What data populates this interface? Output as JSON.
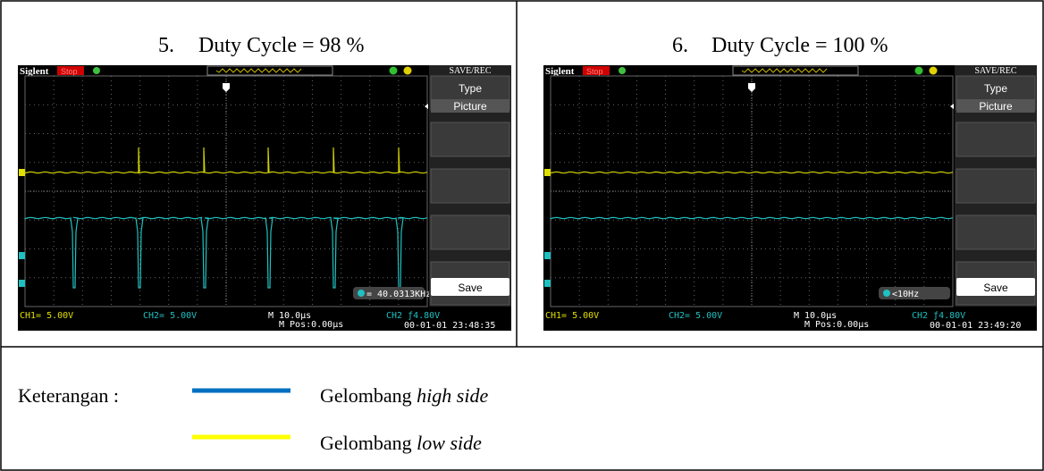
{
  "panels": [
    {
      "number": "5.",
      "caption": "Duty Cycle = 98 %",
      "scope": {
        "brand": "Siglent",
        "status": "Stop",
        "menu_title": "SAVE/REC",
        "menu_items": [
          "Type",
          "Picture",
          "Save"
        ],
        "ch1": "CH1= 5.00V",
        "ch2": "CH2= 5.00V",
        "timebase": "M 10.0µs",
        "position": "M Pos:0.00µs",
        "trigger": "CH2 ƒ4.80V",
        "frequency": "= 40.0313KHz",
        "timestamp": "00-01-01 23:48:35"
      }
    },
    {
      "number": "6.",
      "caption": "Duty Cycle = 100 %",
      "scope": {
        "brand": "Siglent",
        "status": "Stop",
        "menu_title": "SAVE/REC",
        "menu_items": [
          "Type",
          "Picture",
          "Save"
        ],
        "ch1": "CH1= 5.00V",
        "ch2": "CH2= 5.00V",
        "timebase": "M 10.0µs",
        "position": "M Pos:0.00µs",
        "trigger": "CH2 ƒ4.80V",
        "frequency": "<10Hz",
        "timestamp": "00-01-01 23:49:20"
      }
    }
  ],
  "legend": {
    "label": "Keterangan :",
    "items": [
      {
        "text": "Gelombang",
        "emphasis": "high side"
      },
      {
        "text": "Gelombang",
        "emphasis": "low side"
      }
    ]
  }
}
